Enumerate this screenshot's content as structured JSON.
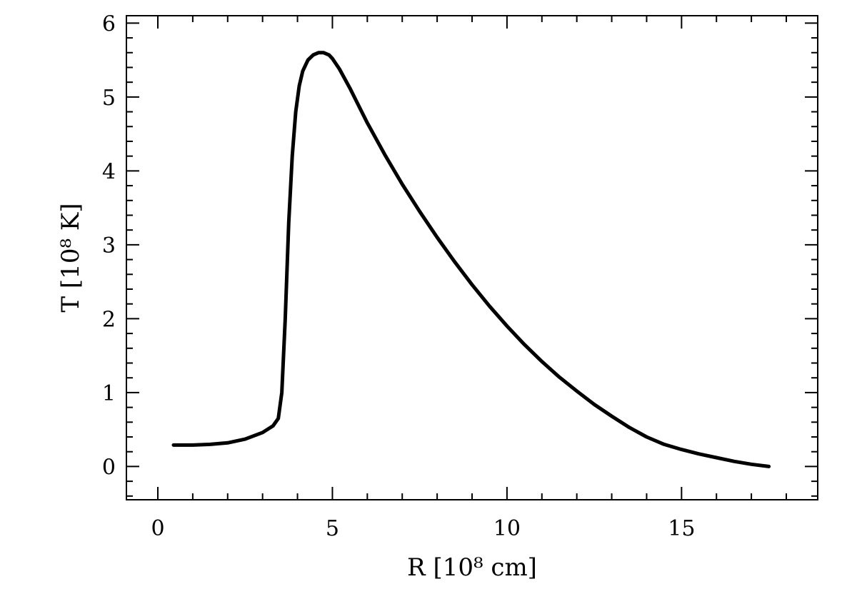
{
  "chart_data": {
    "type": "line",
    "xlabel": "R [10⁸ cm]",
    "ylabel": "T [10⁸ K]",
    "xlim": [
      -0.9,
      18.9
    ],
    "ylim": [
      -0.45,
      6.1
    ],
    "x_major_ticks": [
      0,
      5,
      10,
      15
    ],
    "y_major_ticks": [
      0,
      1,
      2,
      3,
      4,
      5,
      6
    ],
    "x_tick_labels": [
      "0",
      "5",
      "10",
      "15"
    ],
    "y_tick_labels": [
      "0",
      "1",
      "2",
      "3",
      "4",
      "5",
      "6"
    ],
    "grid": false,
    "series": [
      {
        "color": "#000000",
        "x": [
          0.45,
          1.0,
          1.5,
          2.0,
          2.5,
          3.0,
          3.3,
          3.45,
          3.55,
          3.65,
          3.75,
          3.85,
          3.95,
          4.05,
          4.15,
          4.3,
          4.45,
          4.6,
          4.75,
          4.9,
          5.0,
          5.2,
          5.5,
          6.0,
          6.5,
          7.0,
          7.5,
          8.0,
          8.5,
          9.0,
          9.5,
          10.0,
          10.5,
          11.0,
          11.5,
          12.0,
          12.5,
          13.0,
          13.5,
          14.0,
          14.5,
          15.0,
          15.5,
          16.0,
          16.5,
          17.0,
          17.5
        ],
        "y": [
          0.29,
          0.29,
          0.3,
          0.32,
          0.37,
          0.46,
          0.55,
          0.65,
          1.0,
          2.0,
          3.3,
          4.2,
          4.8,
          5.15,
          5.35,
          5.5,
          5.57,
          5.6,
          5.6,
          5.57,
          5.52,
          5.38,
          5.12,
          4.65,
          4.22,
          3.82,
          3.45,
          3.1,
          2.77,
          2.46,
          2.17,
          1.9,
          1.65,
          1.42,
          1.21,
          1.02,
          0.84,
          0.68,
          0.53,
          0.4,
          0.3,
          0.23,
          0.17,
          0.12,
          0.07,
          0.03,
          0.0
        ]
      }
    ]
  }
}
